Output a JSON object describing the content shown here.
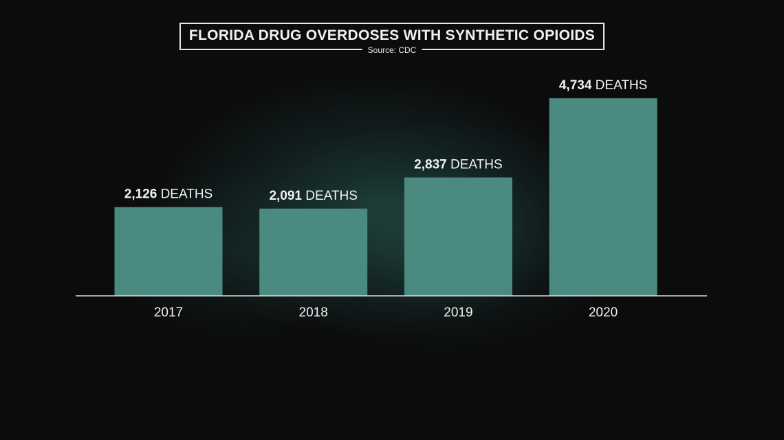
{
  "chart_data": {
    "type": "bar",
    "title": "FLORIDA DRUG OVERDOSES WITH SYNTHETIC OPIOIDS",
    "subtitle": "Source: CDC",
    "categories": [
      "2017",
      "2018",
      "2019",
      "2020"
    ],
    "values": [
      2126,
      2091,
      2837,
      4734
    ],
    "data_labels": [
      {
        "value": "2,126",
        "unit": "DEATHS"
      },
      {
        "value": "2,091",
        "unit": "DEATHS"
      },
      {
        "value": "2,837",
        "unit": "DEATHS"
      },
      {
        "value": "4,734",
        "unit": "DEATHS"
      }
    ],
    "xlabel": "",
    "ylabel": "",
    "ylim": [
      0,
      5000
    ],
    "grid": false,
    "legend": "none",
    "bar_color": "#4a8a80",
    "background_color": "#0c0c0d"
  }
}
